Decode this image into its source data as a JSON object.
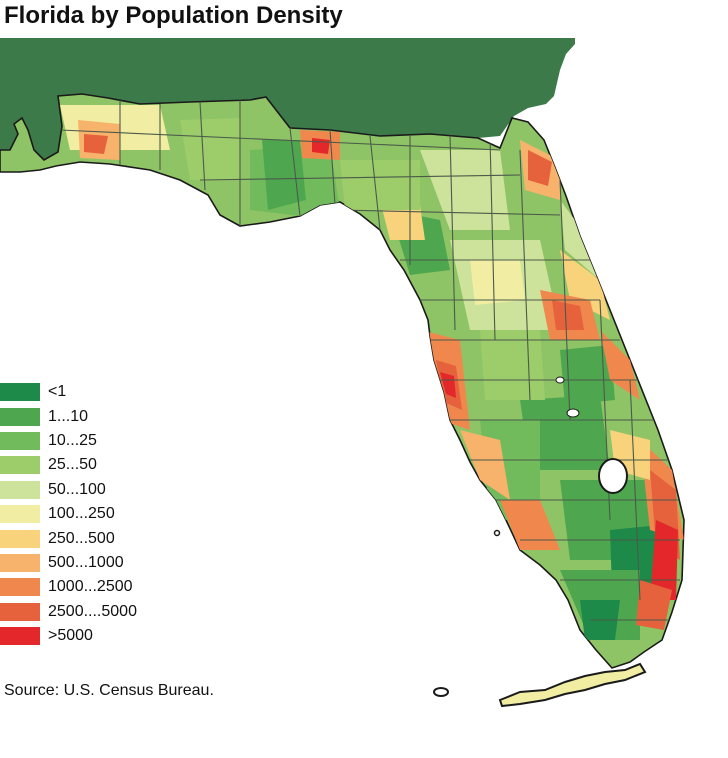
{
  "title": "Florida by Population Density",
  "source": "Source: U.S. Census Bureau.",
  "colors": {
    "land_north": "#3c7a4a",
    "county_line": "#4b5a4a",
    "coast_line": "#1a1a1a"
  },
  "legend": [
    {
      "label": "<1",
      "color": "#1e8a49"
    },
    {
      "label": "1...10",
      "color": "#4ea74f"
    },
    {
      "label": "10...25",
      "color": "#72bb5c"
    },
    {
      "label": "25...50",
      "color": "#9dcc6a"
    },
    {
      "label": "50...100",
      "color": "#cde29a"
    },
    {
      "label": "100...250",
      "color": "#f1eda3"
    },
    {
      "label": "250...500",
      "color": "#f9d27c"
    },
    {
      "label": "500...1000",
      "color": "#f7b36b"
    },
    {
      "label": "1000...2500",
      "color": "#f0884e"
    },
    {
      "label": "2500....5000",
      "color": "#e5623c"
    },
    {
      "label": ">5000",
      "color": "#e3272a"
    }
  ]
}
